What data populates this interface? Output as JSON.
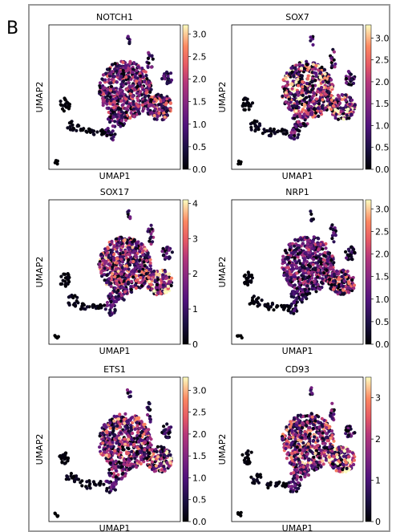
{
  "figure": {
    "panel_label": "B"
  },
  "chart_data": [
    {
      "type": "scatter",
      "title": "NOTCH1",
      "xlabel": "UMAP1",
      "ylabel": "UMAP2",
      "colorbar_ticks": [
        "0.0",
        "0.5",
        "1.0",
        "1.5",
        "2.0",
        "2.5",
        "3.0"
      ],
      "colorbar_range": [
        0,
        3.2
      ],
      "colormap": "magma",
      "level": 0.46
    },
    {
      "type": "scatter",
      "title": "SOX7",
      "xlabel": "UMAP1",
      "ylabel": "UMAP2",
      "colorbar_ticks": [
        "0.0",
        "0.5",
        "1.0",
        "1.5",
        "2.0",
        "2.5",
        "3.0"
      ],
      "colorbar_range": [
        0,
        3.3
      ],
      "colormap": "magma",
      "level": 0.62
    },
    {
      "type": "scatter",
      "title": "SOX17",
      "xlabel": "UMAP1",
      "ylabel": "UMAP2",
      "colorbar_ticks": [
        "0",
        "1",
        "2",
        "3",
        "4"
      ],
      "colorbar_range": [
        0,
        4.1
      ],
      "colormap": "magma",
      "level": 0.56
    },
    {
      "type": "scatter",
      "title": "NRP1",
      "xlabel": "UMAP1",
      "ylabel": "UMAP2",
      "colorbar_ticks": [
        "0.0",
        "0.5",
        "1.0",
        "1.5",
        "2.0",
        "2.5",
        "3.0"
      ],
      "colorbar_range": [
        0,
        3.2
      ],
      "colormap": "magma",
      "level": 0.42
    },
    {
      "type": "scatter",
      "title": "ETS1",
      "xlabel": "UMAP1",
      "ylabel": "UMAP2",
      "colorbar_ticks": [
        "0.0",
        "0.5",
        "1.0",
        "1.5",
        "2.0",
        "2.5",
        "3.0"
      ],
      "colorbar_range": [
        0,
        3.3
      ],
      "colormap": "magma",
      "level": 0.55
    },
    {
      "type": "scatter",
      "title": "CD93",
      "xlabel": "UMAP1",
      "ylabel": "UMAP2",
      "colorbar_ticks": [
        "0",
        "1",
        "2",
        "3"
      ],
      "colorbar_range": [
        0,
        3.5
      ],
      "colormap": "magma",
      "level": 0.58
    }
  ]
}
